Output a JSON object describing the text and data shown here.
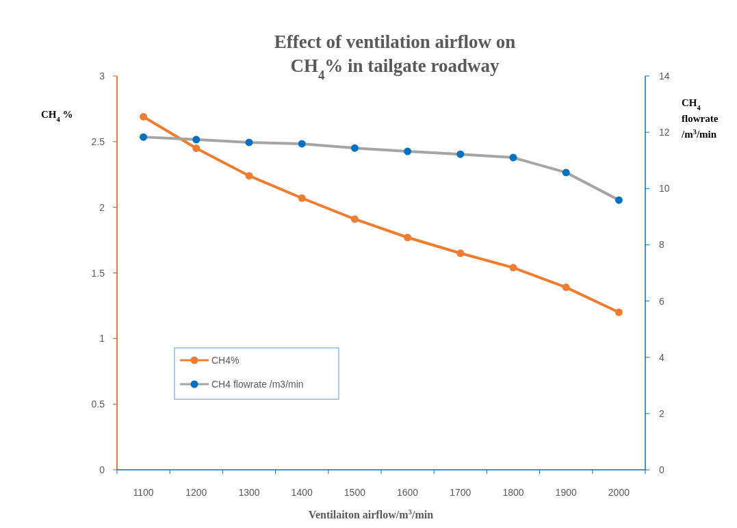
{
  "chart_data": {
    "type": "line",
    "title": "Effect of ventilation airflow on\nCH$_{4}$% in tailgate roadway",
    "xlabel": "Ventilaiton airflow/m$^{3}$/min",
    "ylabel": "CH$_{4}$ %",
    "y2label": "CH$_{4}$\nflowrate\n/m$^{3}$/min",
    "categories": [
      "1100",
      "1200",
      "1300",
      "1400",
      "1500",
      "1600",
      "1700",
      "1800",
      "1900",
      "2000"
    ],
    "series": [
      {
        "name": "CH4%",
        "color": "#ed7d31",
        "values": [
          2.69,
          2.45,
          2.24,
          2.07,
          1.91,
          1.77,
          1.65,
          1.54,
          1.39,
          1.2
        ]
      },
      {
        "name": "CH4 flowrate /m3/min",
        "color": "#a5a5a5",
        "colors": [
          "#0070c0",
          "#0070c0",
          "#0070c0",
          "#0070c0",
          "#0070c0",
          "#0070c0",
          "#0070c0",
          "#0070c0",
          "#0070c0",
          "#0070c0"
        ],
        "axis": "y2",
        "values": [
          11.83,
          11.74,
          11.64,
          11.59,
          11.44,
          11.32,
          11.22,
          11.1,
          10.57,
          9.59
        ]
      }
    ],
    "ylim": [
      0,
      3
    ],
    "yticks": [
      0,
      {
        "value": 0.5,
        "label": "0.5"
      },
      1,
      {
        "value": 1.5,
        "label": "1.5"
      },
      2,
      {
        "value": 2.5,
        "label": "2.5"
      },
      3
    ],
    "y2lim": [
      0,
      14
    ],
    "y2ticks": [
      0,
      2,
      4,
      6,
      8,
      10,
      12,
      14
    ],
    "grid": false,
    "legend": "bottom left",
    "marker": "circle",
    "line_style": "solid"
  }
}
